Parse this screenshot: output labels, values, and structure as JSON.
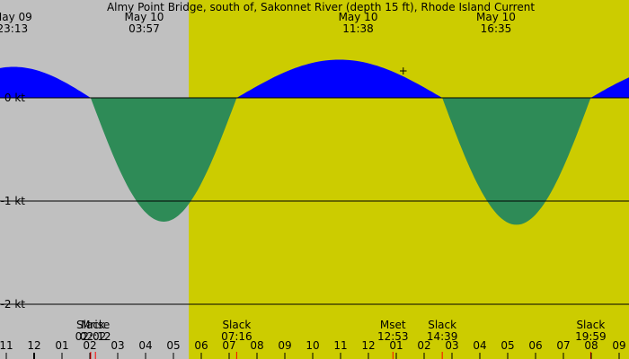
{
  "chart_data": {
    "type": "area",
    "title": "Almy Point Bridge, south of, Sakonnet River (depth 15 ft), Rhode Island Current",
    "unit": "kt",
    "colors": {
      "background": "#c0c0c0",
      "daylight": "#cccc00",
      "flood": "#0000ff",
      "ebb": "#2e8b57",
      "grid": "#000000",
      "tick_minor": "#000000",
      "tick_event": "#ff0000"
    },
    "x_range_hours": [
      -1.1,
      33.9
    ],
    "y_range": [
      -2.2,
      0.95
    ],
    "daylight_hours": [
      5.55,
      27.7
    ],
    "y_ticks": [
      {
        "value": 0,
        "label": "0 kt"
      },
      {
        "value": -1,
        "label": "-1 kt"
      },
      {
        "value": -2,
        "label": "-2 kt"
      }
    ],
    "x_ticks": [
      {
        "hour": -1,
        "label": "11"
      },
      {
        "hour": 0,
        "label": "12"
      },
      {
        "hour": 1,
        "label": "01"
      },
      {
        "hour": 2,
        "label": "02"
      },
      {
        "hour": 3,
        "label": "03"
      },
      {
        "hour": 4,
        "label": "04"
      },
      {
        "hour": 5,
        "label": "05"
      },
      {
        "hour": 6,
        "label": "06"
      },
      {
        "hour": 7,
        "label": "07"
      },
      {
        "hour": 8,
        "label": "08"
      },
      {
        "hour": 9,
        "label": "09"
      },
      {
        "hour": 10,
        "label": "10"
      },
      {
        "hour": 11,
        "label": "11"
      },
      {
        "hour": 12,
        "label": "12"
      },
      {
        "hour": 13,
        "label": "01"
      },
      {
        "hour": 14,
        "label": "02"
      },
      {
        "hour": 15,
        "label": "03"
      },
      {
        "hour": 16,
        "label": "04"
      },
      {
        "hour": 17,
        "label": "05"
      },
      {
        "hour": 18,
        "label": "06"
      },
      {
        "hour": 19,
        "label": "07"
      },
      {
        "hour": 20,
        "label": "08"
      },
      {
        "hour": 21,
        "label": "09"
      }
    ],
    "peaks": [
      {
        "date": "May 09",
        "time": "23:13",
        "hour": -0.78,
        "value": 0.3
      },
      {
        "date": "May 10",
        "time": "03:57",
        "hour": 3.95,
        "value": -1.2
      },
      {
        "date": "May 10",
        "time": "11:38",
        "hour": 11.63,
        "value": 0.37
      },
      {
        "date": "May 10",
        "time": "16:35",
        "hour": 16.58,
        "value": -1.23
      }
    ],
    "events": [
      {
        "label": "Slack",
        "time": "02:02",
        "hour": 2.03
      },
      {
        "label": "Mrise",
        "time": "02:12",
        "hour": 2.2
      },
      {
        "label": "Slack",
        "time": "07:16",
        "hour": 7.27
      },
      {
        "label": "Mset",
        "time": "12:53",
        "hour": 12.88
      },
      {
        "label": "Slack",
        "time": "14:39",
        "hour": 14.65
      },
      {
        "label": "Slack",
        "time": "19:59",
        "hour": 19.98
      }
    ],
    "slack_hours": [
      -3.5,
      2.03,
      7.27,
      14.65,
      19.98,
      26.0
    ],
    "segment_extremes": [
      0.3,
      -1.2,
      0.37,
      -1.23,
      0.3
    ],
    "current_marker": {
      "hour": 13.25,
      "value": 0.26,
      "symbol": "+"
    }
  }
}
